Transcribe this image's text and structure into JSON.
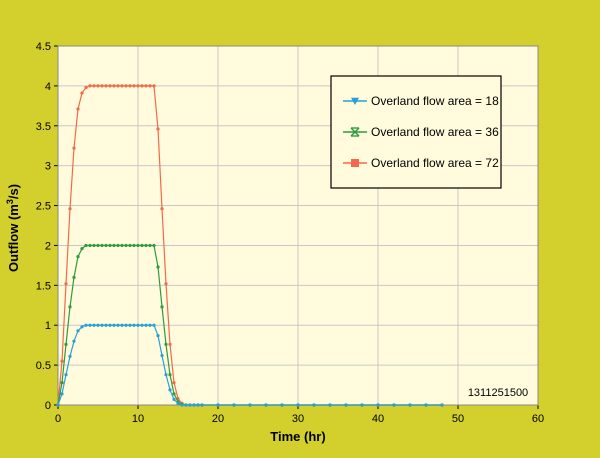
{
  "chart_data": {
    "type": "line",
    "xlabel": "Time (hr)",
    "ylabel": "Outflow (m³/s)",
    "xlim": [
      0,
      60
    ],
    "ylim": [
      0,
      4.5
    ],
    "x_ticks": [
      0,
      10,
      20,
      30,
      40,
      50,
      60
    ],
    "y_ticks": [
      0,
      0.5,
      1,
      1.5,
      2,
      2.5,
      3,
      3.5,
      4,
      4.5
    ],
    "grid": true,
    "legend_position": "top-right",
    "annotation": "1311251500",
    "colors": {
      "background": "#d3cf2d",
      "plot_area": "#fffbdc",
      "grid": "#c8c8c8"
    },
    "series": [
      {
        "name": "Overland flow area = 18",
        "color": "#2a9fd6",
        "marker": "triangle-down",
        "x": [
          0,
          0.5,
          1,
          1.5,
          2,
          2.5,
          3,
          3.5,
          4,
          4.5,
          5,
          5.5,
          6,
          6.5,
          7,
          7.5,
          8,
          8.5,
          9,
          9.5,
          10,
          10.5,
          11,
          11.5,
          12,
          12.5,
          13,
          13.5,
          14,
          14.5,
          15,
          15.5,
          16,
          16.5,
          17,
          17.5,
          18,
          20,
          22,
          24,
          26,
          28,
          30,
          32,
          34,
          36,
          38,
          40,
          42,
          44,
          46,
          48
        ],
        "y": [
          0,
          0.14,
          0.38,
          0.61,
          0.8,
          0.93,
          0.98,
          1,
          1,
          1,
          1,
          1,
          1,
          1,
          1,
          1,
          1,
          1,
          1,
          1,
          1,
          1,
          1,
          1,
          1,
          0.87,
          0.62,
          0.38,
          0.19,
          0.07,
          0.02,
          0,
          0,
          0,
          0,
          0,
          0,
          0,
          0,
          0,
          0,
          0,
          0,
          0,
          0,
          0,
          0,
          0,
          0,
          0,
          0,
          0
        ]
      },
      {
        "name": "Overland flow area = 36",
        "color": "#2e9b3e",
        "marker": "x-bar",
        "x": [
          0,
          0.5,
          1,
          1.5,
          2,
          2.5,
          3,
          3.5,
          4,
          4.5,
          5,
          5.5,
          6,
          6.5,
          7,
          7.5,
          8,
          8.5,
          9,
          9.5,
          10,
          10.5,
          11,
          11.5,
          12,
          12.5,
          13,
          13.5,
          14,
          14.5,
          15,
          15.5,
          16,
          16.5,
          17,
          17.5,
          18,
          20,
          22,
          24,
          26,
          28,
          30,
          32,
          34,
          36,
          38,
          40,
          42,
          44,
          46,
          48
        ],
        "y": [
          0,
          0.28,
          0.76,
          1.23,
          1.6,
          1.86,
          1.96,
          2,
          2,
          2,
          2,
          2,
          2,
          2,
          2,
          2,
          2,
          2,
          2,
          2,
          2,
          2,
          2,
          2,
          2,
          1.73,
          1.23,
          0.76,
          0.38,
          0.14,
          0.04,
          0.01,
          0,
          0,
          0,
          0,
          0,
          0,
          0,
          0,
          0,
          0,
          0,
          0,
          0,
          0,
          0,
          0,
          0,
          0,
          0,
          0
        ]
      },
      {
        "name": "Overland flow area = 72",
        "color": "#f26a4b",
        "marker": "square",
        "x": [
          0,
          0.5,
          1,
          1.5,
          2,
          2.5,
          3,
          3.5,
          4,
          4.5,
          5,
          5.5,
          6,
          6.5,
          7,
          7.5,
          8,
          8.5,
          9,
          9.5,
          10,
          10.5,
          11,
          11.5,
          12,
          12.5,
          13,
          13.5,
          14,
          14.5,
          15,
          15.5,
          16,
          16.5,
          17,
          17.5,
          18,
          20,
          22,
          24,
          26,
          28,
          30,
          32,
          34,
          36,
          38,
          40,
          42,
          44,
          46,
          48
        ],
        "y": [
          0,
          0.55,
          1.52,
          2.46,
          3.22,
          3.71,
          3.91,
          3.98,
          4,
          4,
          4,
          4,
          4,
          4,
          4,
          4,
          4,
          4,
          4,
          4,
          4,
          4,
          4,
          4,
          4,
          3.46,
          2.46,
          1.52,
          0.76,
          0.28,
          0.08,
          0.02,
          0,
          0,
          0,
          0,
          0,
          0,
          0,
          0,
          0,
          0,
          0,
          0,
          0,
          0,
          0,
          0,
          0,
          0,
          0,
          0
        ]
      }
    ]
  }
}
